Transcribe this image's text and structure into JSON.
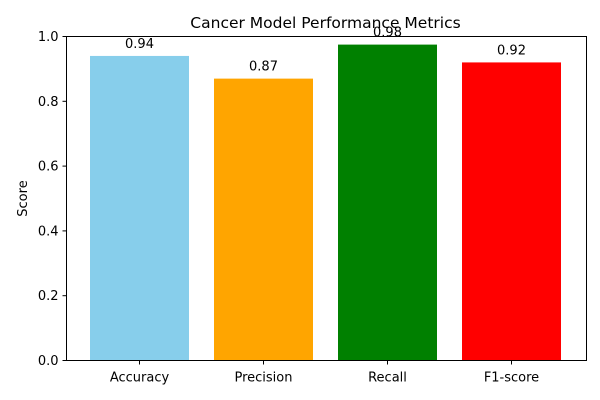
{
  "chart_data": {
    "type": "bar",
    "title": "Cancer Model Performance Metrics",
    "xlabel": "",
    "ylabel": "Score",
    "categories": [
      "Accuracy",
      "Precision",
      "Recall",
      "F1-score"
    ],
    "values": [
      0.94,
      0.87,
      0.975,
      0.92
    ],
    "value_labels": [
      "0.94",
      "0.87",
      "0.98",
      "0.92"
    ],
    "colors": [
      "#87ceeb",
      "#ffa500",
      "#008000",
      "#ff0000"
    ],
    "ylim": [
      0,
      1.0
    ],
    "yticks": [
      0.0,
      0.2,
      0.4,
      0.6,
      0.8,
      1.0
    ],
    "ytick_labels": [
      "0.0",
      "0.2",
      "0.4",
      "0.6",
      "0.8",
      "1.0"
    ],
    "grid": false,
    "legend": "none"
  }
}
